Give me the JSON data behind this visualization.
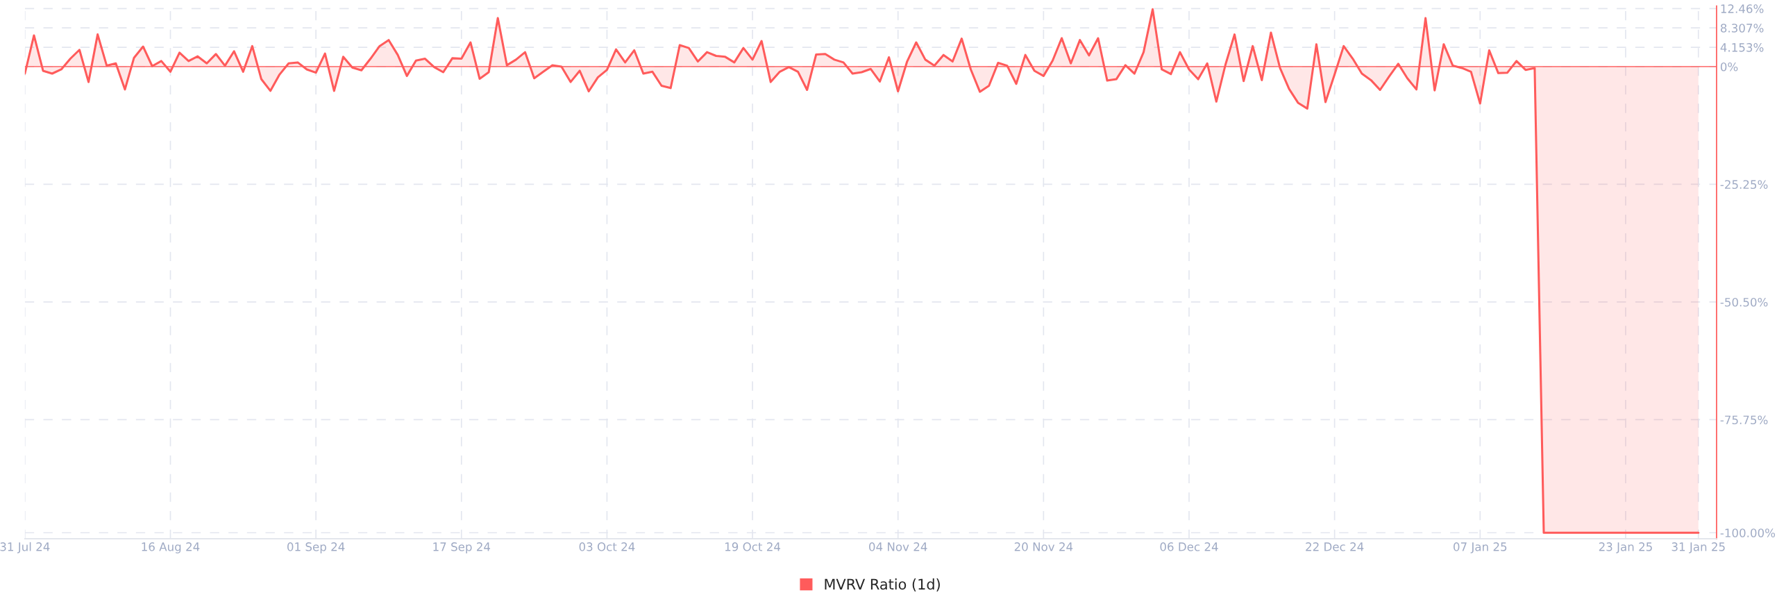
{
  "chart_data": {
    "type": "area",
    "x": [
      "2024-07-31",
      "2024-08-01",
      "2024-08-02",
      "2024-08-03",
      "2024-08-04",
      "2024-08-05",
      "2024-08-06",
      "2024-08-07",
      "2024-08-08",
      "2024-08-09",
      "2024-08-10",
      "2024-08-11",
      "2024-08-12",
      "2024-08-13",
      "2024-08-14",
      "2024-08-15",
      "2024-08-16",
      "2024-08-17",
      "2024-08-18",
      "2024-08-19",
      "2024-08-20",
      "2024-08-21",
      "2024-08-22",
      "2024-08-23",
      "2024-08-24",
      "2024-08-25",
      "2024-08-26",
      "2024-08-27",
      "2024-08-28",
      "2024-08-29",
      "2024-08-30",
      "2024-08-31",
      "2024-09-01",
      "2024-09-02",
      "2024-09-03",
      "2024-09-04",
      "2024-09-05",
      "2024-09-06",
      "2024-09-07",
      "2024-09-08",
      "2024-09-09",
      "2024-09-10",
      "2024-09-11",
      "2024-09-12",
      "2024-09-13",
      "2024-09-14",
      "2024-09-15",
      "2024-09-16",
      "2024-09-17",
      "2024-09-18",
      "2024-09-19",
      "2024-09-20",
      "2024-09-21",
      "2024-09-22",
      "2024-09-23",
      "2024-09-24",
      "2024-09-25",
      "2024-09-26",
      "2024-09-27",
      "2024-09-28",
      "2024-09-29",
      "2024-09-30",
      "2024-10-01",
      "2024-10-02",
      "2024-10-03",
      "2024-10-04",
      "2024-10-05",
      "2024-10-06",
      "2024-10-07",
      "2024-10-08",
      "2024-10-09",
      "2024-10-10",
      "2024-10-11",
      "2024-10-12",
      "2024-10-13",
      "2024-10-14",
      "2024-10-15",
      "2024-10-16",
      "2024-10-17",
      "2024-10-18",
      "2024-10-19",
      "2024-10-20",
      "2024-10-21",
      "2024-10-22",
      "2024-10-23",
      "2024-10-24",
      "2024-10-25",
      "2024-10-26",
      "2024-10-27",
      "2024-10-28",
      "2024-10-29",
      "2024-10-30",
      "2024-10-31",
      "2024-11-01",
      "2024-11-02",
      "2024-11-03",
      "2024-11-04",
      "2024-11-05",
      "2024-11-06",
      "2024-11-07",
      "2024-11-08",
      "2024-11-09",
      "2024-11-10",
      "2024-11-11",
      "2024-11-12",
      "2024-11-13",
      "2024-11-14",
      "2024-11-15",
      "2024-11-16",
      "2024-11-17",
      "2024-11-18",
      "2024-11-19",
      "2024-11-20",
      "2024-11-21",
      "2024-11-22",
      "2024-11-23",
      "2024-11-24",
      "2024-11-25",
      "2024-11-26",
      "2024-11-27",
      "2024-11-28",
      "2024-11-29",
      "2024-11-30",
      "2024-12-01",
      "2024-12-02",
      "2024-12-03",
      "2024-12-04",
      "2024-12-05",
      "2024-12-06",
      "2024-12-07",
      "2024-12-08",
      "2024-12-09",
      "2024-12-10",
      "2024-12-11",
      "2024-12-12",
      "2024-12-13",
      "2024-12-14",
      "2024-12-15",
      "2024-12-16",
      "2024-12-17",
      "2024-12-18",
      "2024-12-19",
      "2024-12-20",
      "2024-12-21",
      "2024-12-22",
      "2024-12-23",
      "2024-12-24",
      "2024-12-25",
      "2024-12-26",
      "2024-12-27",
      "2024-12-28",
      "2024-12-29",
      "2024-12-30",
      "2024-12-31",
      "2025-01-01",
      "2025-01-02",
      "2025-01-03",
      "2025-01-04",
      "2025-01-05",
      "2025-01-06",
      "2025-01-07",
      "2025-01-08",
      "2025-01-09",
      "2025-01-10",
      "2025-01-11",
      "2025-01-12",
      "2025-01-13",
      "2025-01-14",
      "2025-01-15",
      "2025-01-16",
      "2025-01-17",
      "2025-01-18",
      "2025-01-19",
      "2025-01-20",
      "2025-01-21",
      "2025-01-22",
      "2025-01-23",
      "2025-01-24",
      "2025-01-25",
      "2025-01-26",
      "2025-01-27",
      "2025-01-28",
      "2025-01-29",
      "2025-01-30",
      "2025-01-31"
    ],
    "series": [
      {
        "name": "MVRV Ratio (1d)",
        "color": "#ff5b5b",
        "values": [
          -1.5,
          6.7,
          -0.9,
          -1.5,
          -0.6,
          1.7,
          3.6,
          -3.3,
          6.9,
          0.2,
          0.7,
          -4.9,
          1.9,
          4.3,
          0.1,
          1.2,
          -1.1,
          3.0,
          1.2,
          2.2,
          0.7,
          2.7,
          0.2,
          3.3,
          -1.1,
          4.4,
          -2.7,
          -5.2,
          -1.7,
          0.7,
          0.9,
          -0.6,
          -1.3,
          2.8,
          -5.2,
          2.1,
          -0.2,
          -0.8,
          1.7,
          4.4,
          5.7,
          2.5,
          -2.0,
          1.3,
          1.7,
          -0.1,
          -1.2,
          1.8,
          1.7,
          5.2,
          -2.6,
          -1.2,
          10.4,
          0.3,
          1.5,
          3.1,
          -2.5,
          -1.1,
          0.3,
          0.0,
          -3.3,
          -0.9,
          -5.3,
          -2.3,
          -0.7,
          3.7,
          0.9,
          3.5,
          -1.5,
          -1.1,
          -4.1,
          -4.6,
          4.6,
          4.0,
          1.1,
          3.1,
          2.3,
          2.1,
          0.9,
          4.0,
          1.5,
          5.5,
          -3.3,
          -1.1,
          -0.1,
          -1.1,
          -5.0,
          2.6,
          2.7,
          1.5,
          0.9,
          -1.5,
          -1.2,
          -0.5,
          -3.2,
          2.0,
          -5.3,
          1.1,
          5.2,
          1.5,
          0.2,
          2.5,
          1.1,
          6.0,
          -0.6,
          -5.4,
          -4.1,
          0.8,
          0.2,
          -3.7,
          2.5,
          -0.9,
          -2.0,
          1.3,
          6.1,
          0.7,
          5.7,
          2.4,
          6.1,
          -3.0,
          -2.7,
          0.3,
          -1.5,
          3.1,
          12.3,
          -0.6,
          -1.6,
          3.1,
          -0.6,
          -2.7,
          0.7,
          -7.5,
          0.4,
          6.9,
          -3.1,
          4.4,
          -2.9,
          7.3,
          -0.3,
          -4.8,
          -7.8,
          -9.0,
          4.8,
          -7.6,
          -1.7,
          4.4,
          1.7,
          -1.5,
          -2.9,
          -5.0,
          -2.1,
          0.6,
          -2.5,
          -4.9,
          10.4,
          -5.1,
          4.8,
          0.2,
          -0.3,
          -1.1,
          -7.9,
          3.5,
          -1.4,
          -1.3,
          1.2,
          -0.7,
          -0.3,
          -100,
          -100,
          -100,
          -100,
          -100,
          -100,
          -100,
          -100,
          -100,
          -100,
          -100,
          -100,
          -100,
          -100,
          -100,
          -100,
          -100,
          -100
        ]
      }
    ],
    "xlim": [
      "2024-07-31",
      "2025-02-02"
    ],
    "xticks": [
      {
        "value": "2024-07-31",
        "label": "31 Jul 24"
      },
      {
        "value": "2024-08-16",
        "label": "16 Aug 24"
      },
      {
        "value": "2024-09-01",
        "label": "01 Sep 24"
      },
      {
        "value": "2024-09-17",
        "label": "17 Sep 24"
      },
      {
        "value": "2024-10-03",
        "label": "03 Oct 24"
      },
      {
        "value": "2024-10-19",
        "label": "19 Oct 24"
      },
      {
        "value": "2024-11-04",
        "label": "04 Nov 24"
      },
      {
        "value": "2024-11-20",
        "label": "20 Nov 24"
      },
      {
        "value": "2024-12-06",
        "label": "06 Dec 24"
      },
      {
        "value": "2024-12-22",
        "label": "22 Dec 24"
      },
      {
        "value": "2025-01-07",
        "label": "07 Jan 25"
      },
      {
        "value": "2025-01-23",
        "label": "23 Jan 25"
      },
      {
        "value": "2025-01-31",
        "label": "31 Jan 25"
      }
    ],
    "ylim": [
      -101.3,
      13
    ],
    "yticks": [
      {
        "value": 12.46,
        "label": "12.46%"
      },
      {
        "value": 8.307,
        "label": "8.307%"
      },
      {
        "value": 4.153,
        "label": "4.153%"
      },
      {
        "value": 0,
        "label": "0%"
      },
      {
        "value": -25.25,
        "label": "-25.25%"
      },
      {
        "value": -50.5,
        "label": "-50.50%"
      },
      {
        "value": -75.75,
        "label": "-75.75%"
      },
      {
        "value": -100,
        "label": "-100.00%"
      }
    ],
    "ref_lines": [
      {
        "axis": "y",
        "value": 0,
        "color": "#ff5b5b"
      }
    ],
    "grid": true,
    "legend": "bottom"
  }
}
